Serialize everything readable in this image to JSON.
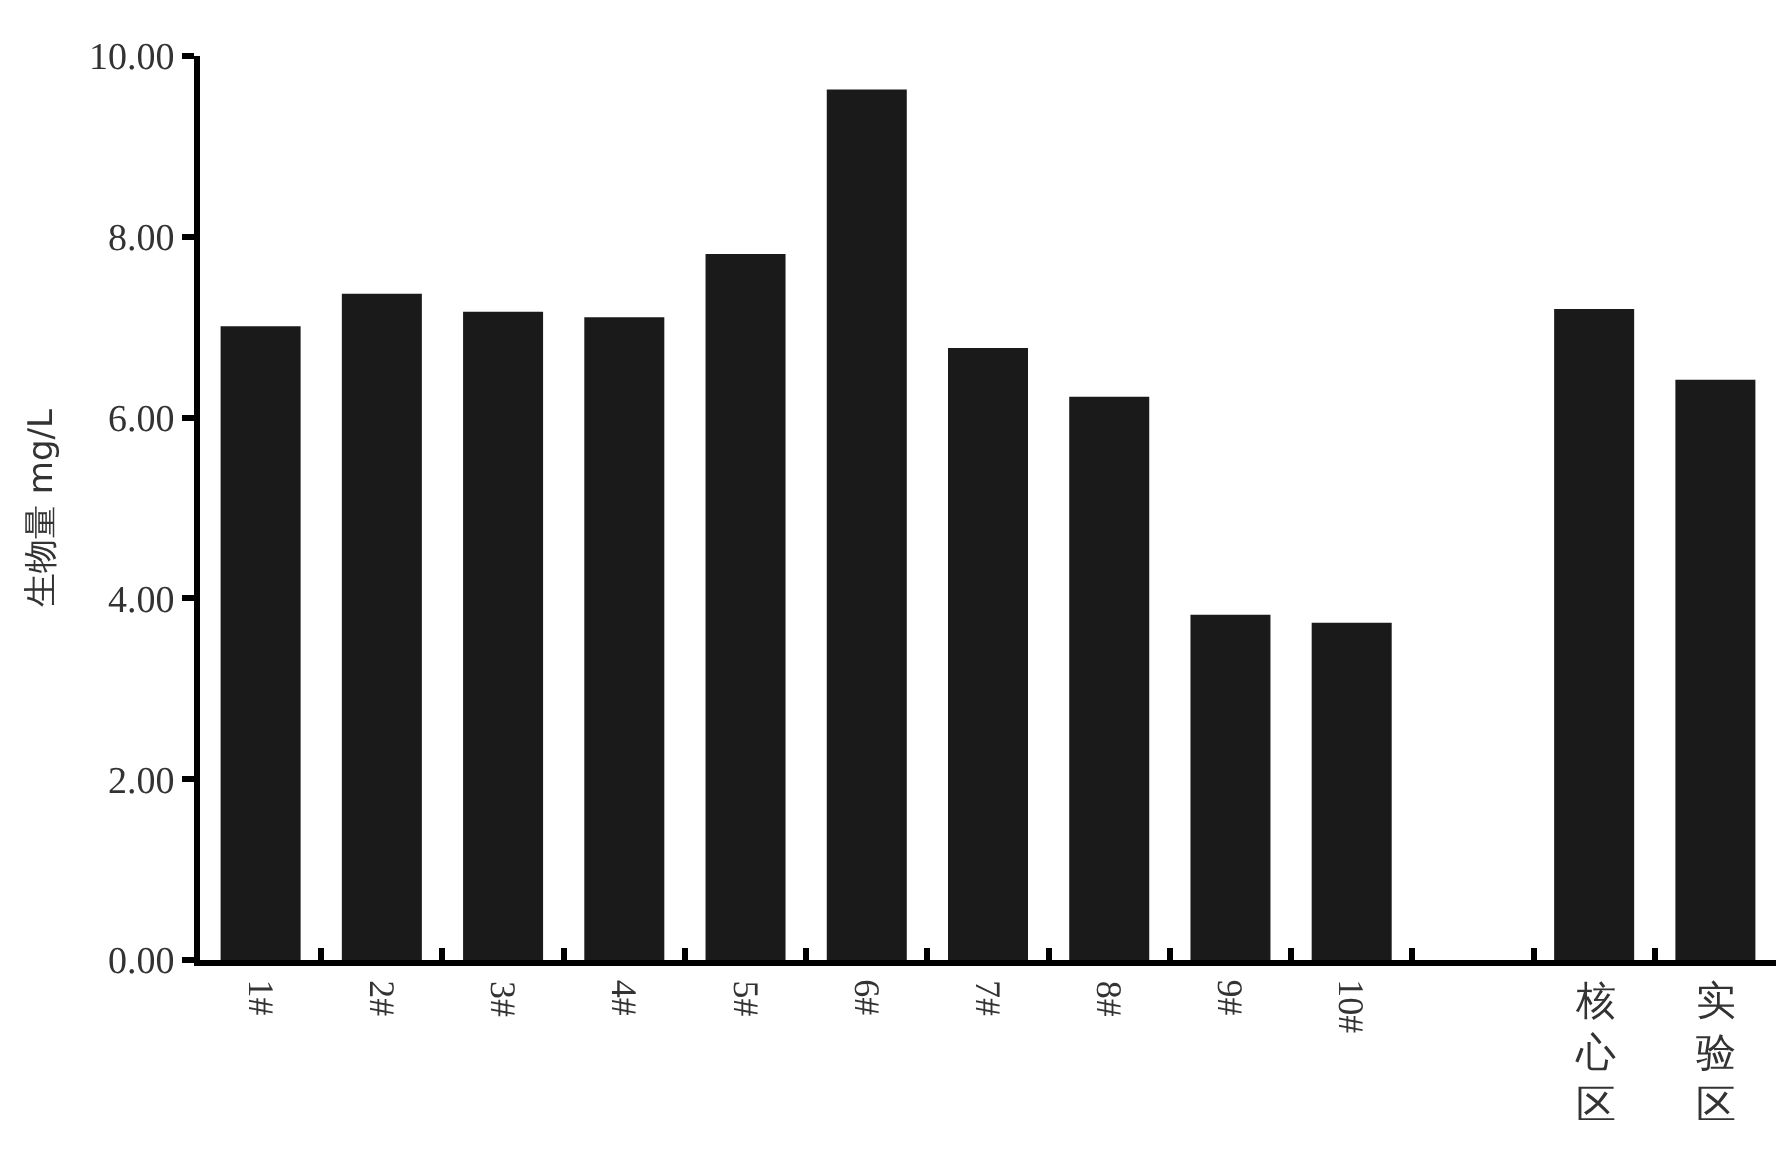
{
  "chart_data": {
    "type": "bar",
    "ylabel": "生物量 mg/L",
    "categories": [
      "1#",
      "2#",
      "3#",
      "4#",
      "5#",
      "6#",
      "7#",
      "8#",
      "9#",
      "10#",
      null,
      "核心区",
      "实验区"
    ],
    "values": [
      7.01,
      7.37,
      7.17,
      7.11,
      7.81,
      9.63,
      6.77,
      6.23,
      3.82,
      3.73,
      null,
      7.2,
      6.42
    ],
    "color": "#1a1a1a",
    "ylim": [
      0,
      10
    ],
    "yticks": [
      {
        "value": 0,
        "label": "0.00"
      },
      {
        "value": 2,
        "label": "2.00"
      },
      {
        "value": 4,
        "label": "4.00"
      },
      {
        "value": 6,
        "label": "6.00"
      },
      {
        "value": 8,
        "label": "8.00"
      },
      {
        "value": 10,
        "label": "10.00"
      }
    ]
  }
}
